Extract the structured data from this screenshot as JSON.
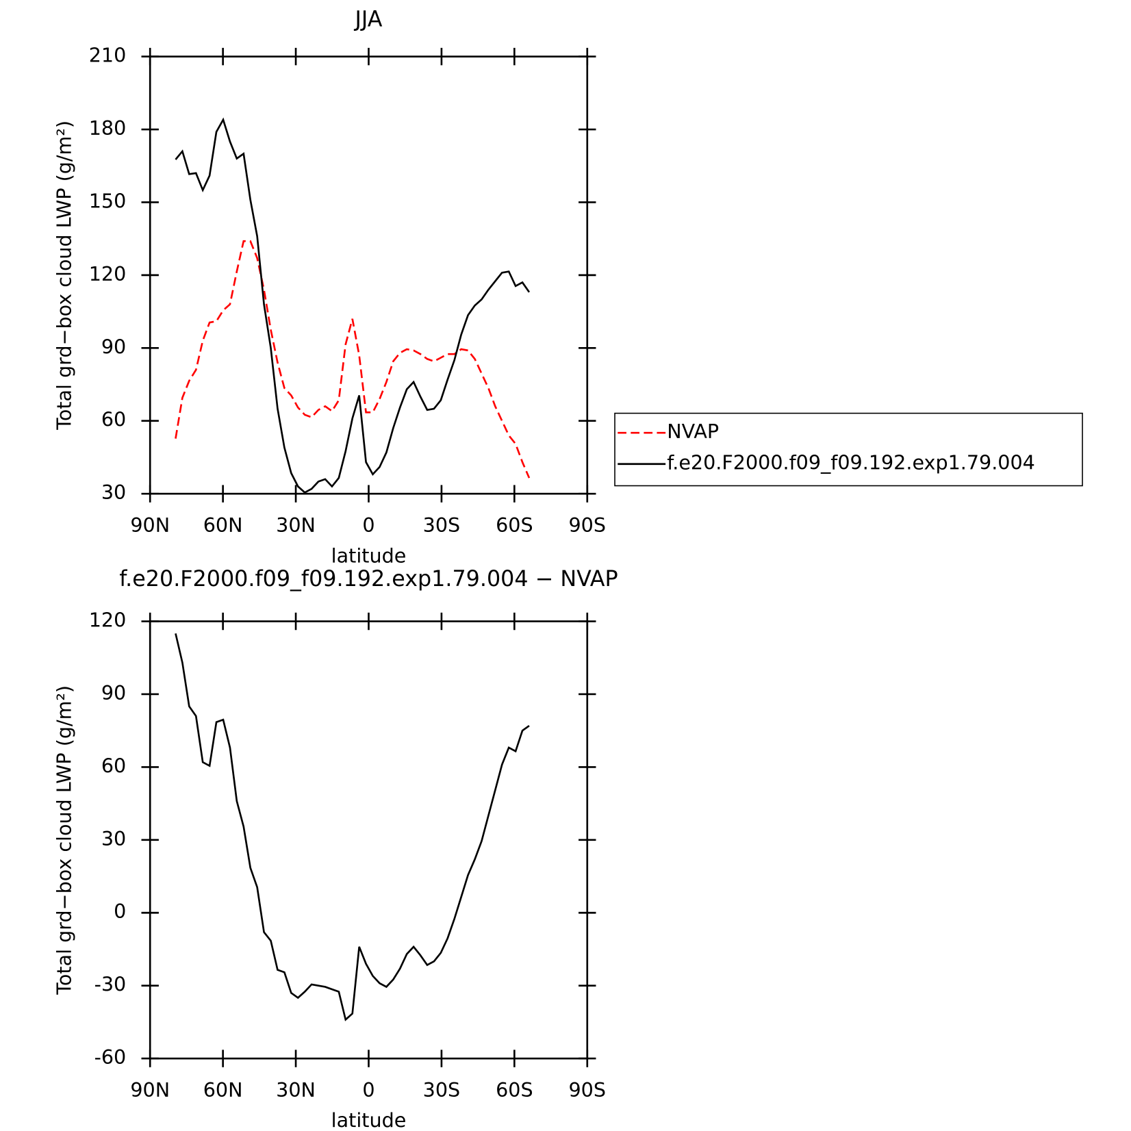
{
  "chart_data": [
    {
      "type": "line",
      "title": "JJA",
      "xlabel": "latitude",
      "ylabel": "Total grd−box cloud LWP (g/m²)",
      "x": [
        79.5,
        76.7,
        73.9,
        71.1,
        68.3,
        65.5,
        62.7,
        59.9,
        57.1,
        54.3,
        51.5,
        48.7,
        45.9,
        43.1,
        40.3,
        37.5,
        34.7,
        31.9,
        29.1,
        26.3,
        23.5,
        20.7,
        17.9,
        15.1,
        12.3,
        9.5,
        6.7,
        3.9,
        1.1,
        -1.7,
        -4.5,
        -7.3,
        -10.1,
        -12.9,
        -15.7,
        -18.5,
        -21.3,
        -24.1,
        -26.9,
        -29.7,
        -32.5,
        -35.3,
        -38.1,
        -40.9,
        -43.7,
        -46.5,
        -49.3,
        -52.1,
        -54.9,
        -57.7,
        -60.5,
        -63.3,
        -66.1
      ],
      "series": [
        {
          "name": "NVAP",
          "color": "#ff0000",
          "line_style": "dashed",
          "values": [
            52.7,
            69.5,
            76.5,
            81,
            93,
            100.5,
            101,
            105.5,
            108,
            121.5,
            134,
            134,
            127,
            114,
            97.5,
            84,
            73.5,
            70.5,
            65.5,
            62.5,
            61.5,
            64.5,
            66,
            64,
            68.5,
            91.5,
            102,
            87,
            63.5,
            63.5,
            69,
            76,
            84.5,
            88,
            89.5,
            89,
            87.5,
            85.5,
            84.5,
            86,
            87.5,
            87.5,
            89.5,
            89,
            85.5,
            79.5,
            73.5,
            66,
            60,
            54,
            50.5,
            43,
            36.5
          ]
        },
        {
          "name": "f.e20.F2000.f09_f09.192.exp1.79.004",
          "color": "#000000",
          "line_style": "solid",
          "values": [
            167.6,
            171,
            161.6,
            162,
            155,
            161,
            179,
            184,
            175,
            168,
            170,
            151,
            136,
            108,
            90,
            65,
            49,
            38.5,
            33,
            30.5,
            32,
            35,
            36,
            33,
            36.5,
            47.5,
            61,
            70.5,
            43,
            38,
            41,
            47,
            57,
            65.5,
            73,
            76,
            70,
            64.5,
            65,
            68.5,
            77,
            85,
            95.5,
            103.5,
            107.5,
            110,
            114,
            117.5,
            121,
            121.5,
            115.5,
            117,
            113
          ]
        }
      ],
      "xlim": [
        90,
        -90
      ],
      "xticks": [
        {
          "value": 90,
          "label": "90N"
        },
        {
          "value": 60,
          "label": "60N"
        },
        {
          "value": 30,
          "label": "30N"
        },
        0,
        {
          "value": -30,
          "label": "30S"
        },
        {
          "value": -60,
          "label": "60S"
        },
        {
          "value": -90,
          "label": "90S"
        }
      ],
      "ylim": [
        30,
        210
      ],
      "yticks": [
        30,
        60,
        90,
        120,
        150,
        180,
        210
      ],
      "legend": "right"
    },
    {
      "type": "line",
      "title": "f.e20.F2000.f09_f09.192.exp1.79.004 − NVAP",
      "xlabel": "latitude",
      "ylabel": "Total grd−box cloud LWP (g/m²)",
      "x": [
        79.5,
        76.7,
        73.9,
        71.1,
        68.3,
        65.5,
        62.7,
        59.9,
        57.1,
        54.3,
        51.5,
        48.7,
        45.9,
        43.1,
        40.3,
        37.5,
        34.7,
        31.9,
        29.1,
        26.3,
        23.5,
        20.7,
        17.9,
        15.1,
        12.3,
        9.5,
        6.7,
        3.9,
        1.1,
        -1.7,
        -4.5,
        -7.3,
        -10.1,
        -12.9,
        -15.7,
        -18.5,
        -21.3,
        -24.1,
        -26.9,
        -29.7,
        -32.5,
        -35.3,
        -38.1,
        -40.9,
        -43.7,
        -46.5,
        -49.3,
        -52.1,
        -54.9,
        -57.7,
        -60.5,
        -63.3,
        -66.1
      ],
      "series": [
        {
          "color": "#000000",
          "line_style": "solid",
          "values": [
            115,
            103,
            85,
            81,
            62,
            60.5,
            78.5,
            79.5,
            68,
            46,
            35.5,
            18.5,
            10.5,
            -8,
            -11.5,
            -23.5,
            -24.5,
            -33,
            -35,
            -32.5,
            -29.5,
            -30,
            -30.5,
            -31.5,
            -32.5,
            -44,
            -41.5,
            -14,
            -21,
            -26,
            -29,
            -30.5,
            -27.5,
            -23,
            -17,
            -14,
            -17.5,
            -21.5,
            -20,
            -16.5,
            -10.5,
            -2.5,
            6.5,
            15.5,
            22,
            29.5,
            40,
            50.5,
            61,
            68,
            66.5,
            75,
            77
          ]
        }
      ],
      "xlim": [
        90,
        -90
      ],
      "xticks": [
        {
          "value": 90,
          "label": "90N"
        },
        {
          "value": 60,
          "label": "60N"
        },
        {
          "value": 30,
          "label": "30N"
        },
        0,
        {
          "value": -30,
          "label": "30S"
        },
        {
          "value": -60,
          "label": "60S"
        },
        {
          "value": -90,
          "label": "90S"
        }
      ],
      "ylim": [
        -60,
        120
      ],
      "yticks": [
        -60,
        -30,
        0,
        30,
        60,
        90,
        120
      ]
    }
  ]
}
